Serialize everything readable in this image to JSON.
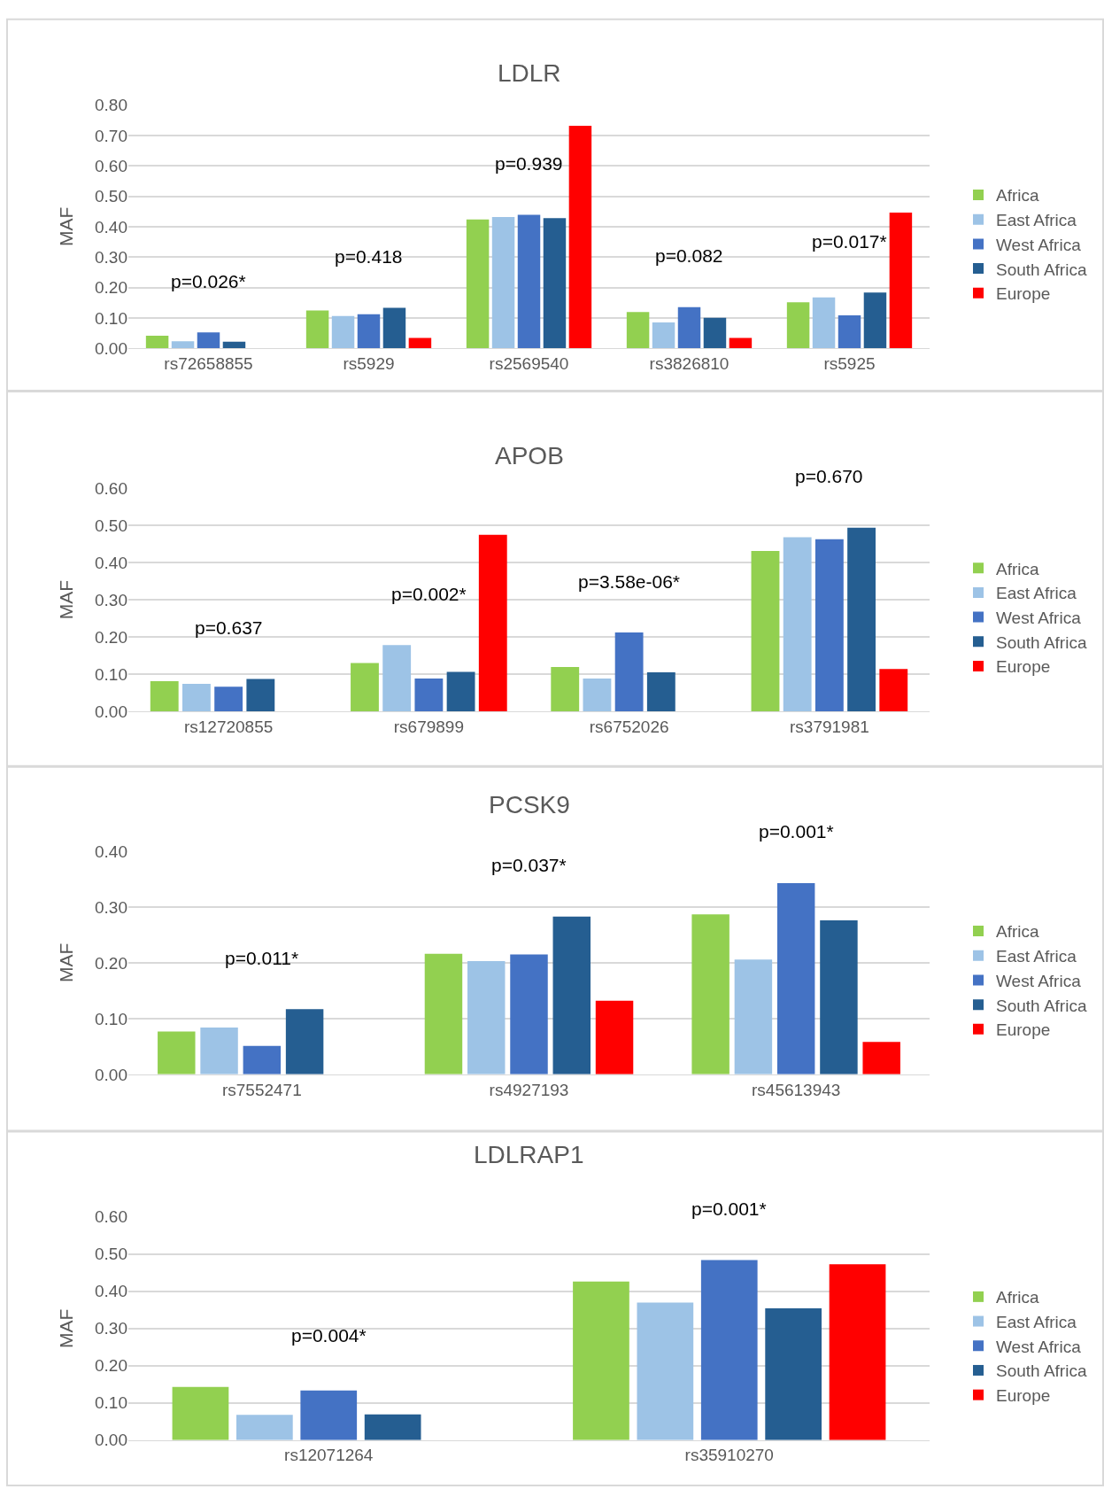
{
  "chart_data": [
    {
      "type": "bar",
      "title": "LDLR",
      "ylabel": "MAF",
      "categories": [
        "rs72658855",
        "rs5929",
        "rs2569540",
        "rs3826810",
        "rs5925"
      ],
      "series": [
        {
          "name": "Africa",
          "color": "#92d050",
          "values": [
            0.041,
            0.124,
            0.424,
            0.119,
            0.151
          ]
        },
        {
          "name": "East Africa",
          "color": "#9dc3e6",
          "values": [
            0.023,
            0.106,
            0.432,
            0.085,
            0.167
          ]
        },
        {
          "name": "West Africa",
          "color": "#4472c4",
          "values": [
            0.052,
            0.112,
            0.439,
            0.135,
            0.108
          ]
        },
        {
          "name": "South Africa",
          "color": "#255e91",
          "values": [
            0.022,
            0.133,
            0.428,
            0.1,
            0.183
          ]
        },
        {
          "name": "Europe",
          "color": "#ff0000",
          "values": [
            null,
            0.034,
            0.732,
            0.034,
            0.446
          ]
        }
      ],
      "ylim": [
        0,
        0.8
      ],
      "yticks": [
        {
          "value": 0,
          "label": "0.00"
        },
        {
          "value": 0.1,
          "label": "0.10"
        },
        {
          "value": 0.2,
          "label": "0.20"
        },
        {
          "value": 0.3,
          "label": "0.30"
        },
        {
          "value": 0.4,
          "label": "0.40"
        },
        {
          "value": 0.5,
          "label": "0.50"
        },
        {
          "value": 0.6,
          "label": "0.60"
        },
        {
          "value": 0.7,
          "label": "0.70"
        },
        {
          "value": 0.8,
          "label": "0.80"
        }
      ],
      "grid": "y",
      "legend": "right",
      "annotations": [
        "p=0.026*",
        "p=0.418",
        "p=0.939",
        "p=0.082",
        "p=0.017*"
      ]
    },
    {
      "type": "bar",
      "title": "APOB",
      "ylabel": "MAF",
      "categories": [
        "rs12720855",
        "rs679899",
        "rs6752026",
        "rs3791981"
      ],
      "series": [
        {
          "name": "Africa",
          "color": "#92d050",
          "values": [
            0.081,
            0.13,
            0.119,
            0.431
          ]
        },
        {
          "name": "East Africa",
          "color": "#9dc3e6",
          "values": [
            0.074,
            0.178,
            0.088,
            0.468
          ]
        },
        {
          "name": "West Africa",
          "color": "#4472c4",
          "values": [
            0.066,
            0.088,
            0.212,
            0.463
          ]
        },
        {
          "name": "South Africa",
          "color": "#255e91",
          "values": [
            0.087,
            0.106,
            0.105,
            0.494
          ]
        },
        {
          "name": "Europe",
          "color": "#ff0000",
          "values": [
            null,
            0.475,
            null,
            0.114
          ]
        }
      ],
      "ylim": [
        0,
        0.6
      ],
      "yticks": [
        {
          "value": 0,
          "label": "0.00"
        },
        {
          "value": 0.1,
          "label": "0.10"
        },
        {
          "value": 0.2,
          "label": "0.20"
        },
        {
          "value": 0.3,
          "label": "0.30"
        },
        {
          "value": 0.4,
          "label": "0.40"
        },
        {
          "value": 0.5,
          "label": "0.50"
        },
        {
          "value": 0.6,
          "label": "0.60"
        }
      ],
      "grid": "y",
      "legend": "right",
      "annotations": [
        "p=0.637",
        "p=0.002*",
        "p=3.58e-06*",
        "p=0.670"
      ]
    },
    {
      "type": "bar",
      "title": "PCSK9",
      "ylabel": "MAF",
      "categories": [
        "rs7552471",
        "rs4927193",
        "rs45613943"
      ],
      "series": [
        {
          "name": "Africa",
          "color": "#92d050",
          "values": [
            0.077,
            0.216,
            0.287
          ]
        },
        {
          "name": "East Africa",
          "color": "#9dc3e6",
          "values": [
            0.084,
            0.203,
            0.206
          ]
        },
        {
          "name": "West Africa",
          "color": "#4472c4",
          "values": [
            0.051,
            0.215,
            0.343
          ]
        },
        {
          "name": "South Africa",
          "color": "#255e91",
          "values": [
            0.117,
            0.283,
            0.276
          ]
        },
        {
          "name": "Europe",
          "color": "#ff0000",
          "values": [
            null,
            0.132,
            0.058
          ]
        }
      ],
      "ylim": [
        0,
        0.4
      ],
      "yticks": [
        {
          "value": 0,
          "label": "0.00"
        },
        {
          "value": 0.1,
          "label": "0.10"
        },
        {
          "value": 0.2,
          "label": "0.20"
        },
        {
          "value": 0.3,
          "label": "0.30"
        },
        {
          "value": 0.4,
          "label": "0.40"
        }
      ],
      "grid": "y",
      "legend": "right",
      "annotations": [
        "p=0.011*",
        "p=0.037*",
        "p=0.001*"
      ]
    },
    {
      "type": "bar",
      "title": "LDLRAP1",
      "ylabel": "MAF",
      "categories": [
        "rs12071264",
        "rs35910270"
      ],
      "series": [
        {
          "name": "Africa",
          "color": "#92d050",
          "values": [
            0.143,
            0.426
          ]
        },
        {
          "name": "East Africa",
          "color": "#9dc3e6",
          "values": [
            0.068,
            0.37
          ]
        },
        {
          "name": "West Africa",
          "color": "#4472c4",
          "values": [
            0.133,
            0.484
          ]
        },
        {
          "name": "South Africa",
          "color": "#255e91",
          "values": [
            0.069,
            0.354
          ]
        },
        {
          "name": "Europe",
          "color": "#ff0000",
          "values": [
            null,
            0.473
          ]
        }
      ],
      "ylim": [
        0,
        0.6
      ],
      "yticks": [
        {
          "value": 0,
          "label": "0.00"
        },
        {
          "value": 0.1,
          "label": "0.10"
        },
        {
          "value": 0.2,
          "label": "0.20"
        },
        {
          "value": 0.3,
          "label": "0.30"
        },
        {
          "value": 0.4,
          "label": "0.40"
        },
        {
          "value": 0.5,
          "label": "0.50"
        },
        {
          "value": 0.6,
          "label": "0.60"
        }
      ],
      "grid": "y",
      "legend": "right",
      "annotations": [
        "p=0.004*",
        "p=0.001*"
      ]
    }
  ]
}
